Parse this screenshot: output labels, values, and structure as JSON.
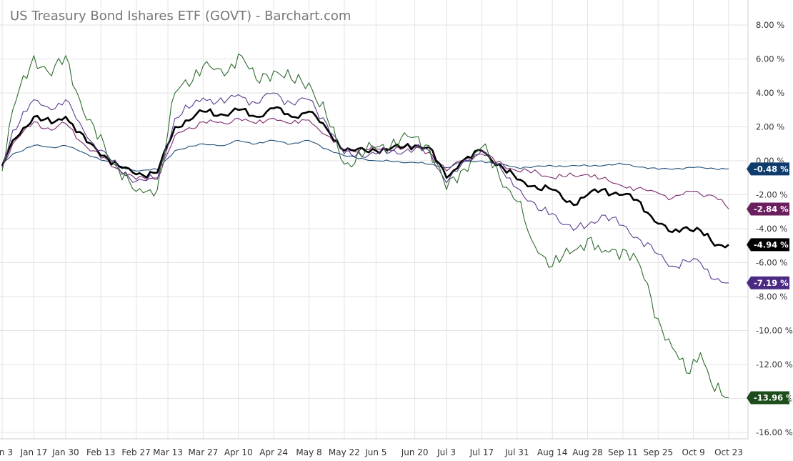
{
  "chart_data": {
    "type": "line",
    "title": "US Treasury Bond Ishares ETF (GOVT) - Barchart.com",
    "xlabel": "",
    "ylabel": "",
    "ylim": [
      -17,
      9
    ],
    "y_tick_values": [
      8,
      6,
      4,
      2,
      0,
      -2,
      -4,
      -6,
      -8,
      -10,
      -12,
      -14,
      -16
    ],
    "y_tick_labels": [
      "8.00 %",
      "6.00 %",
      "4.00 %",
      "2.00 %",
      "0.00 %",
      "-2.00 %",
      "-4.00 %",
      "-6.00 %",
      "-8.00 %",
      "-10.00 %",
      "-12.00 %",
      "-14.00 %",
      "-16.00 %"
    ],
    "x_tick_labels": [
      "Jan 3",
      "Jan 17",
      "Jan 30",
      "Feb 13",
      "Feb 27",
      "Mar 13",
      "Mar 27",
      "Apr 10",
      "Apr 24",
      "May 8",
      "May 22",
      "Jun 5",
      "Jun 20",
      "Jul 3",
      "Jul 17",
      "Jul 31",
      "Aug 14",
      "Aug 28",
      "Sep 11",
      "Sep 25",
      "Oct 9",
      "Oct 23"
    ],
    "x_tick_index": [
      0,
      9,
      18,
      28,
      38,
      47,
      57,
      67,
      77,
      87,
      97,
      106,
      117,
      126,
      136,
      146,
      156,
      166,
      176,
      186,
      196,
      206
    ],
    "grid": true,
    "legend": "none",
    "series": [
      {
        "color": "#1f4e79",
        "width": 1.1,
        "end_label": "-0.48 %",
        "badge_color": "#0f3c6e",
        "keypoints": [
          [
            0,
            -0.2
          ],
          [
            3,
            0.4
          ],
          [
            9,
            0.9
          ],
          [
            14,
            0.8
          ],
          [
            18,
            0.9
          ],
          [
            24,
            0.4
          ],
          [
            33,
            -0.3
          ],
          [
            38,
            -0.6
          ],
          [
            44,
            -0.5
          ],
          [
            49,
            0.6
          ],
          [
            57,
            1.0
          ],
          [
            63,
            0.9
          ],
          [
            67,
            1.2
          ],
          [
            72,
            1.0
          ],
          [
            77,
            1.2
          ],
          [
            82,
            1.0
          ],
          [
            87,
            1.2
          ],
          [
            92,
            0.7
          ],
          [
            97,
            0.3
          ],
          [
            106,
            0.0
          ],
          [
            117,
            -0.1
          ],
          [
            121,
            -0.2
          ],
          [
            126,
            -0.4
          ],
          [
            130,
            -0.1
          ],
          [
            136,
            0.0
          ],
          [
            146,
            -0.4
          ],
          [
            156,
            -0.3
          ],
          [
            166,
            -0.3
          ],
          [
            176,
            -0.2
          ],
          [
            186,
            -0.5
          ],
          [
            196,
            -0.4
          ],
          [
            206,
            -0.48
          ]
        ]
      },
      {
        "color": "#7b2a6e",
        "width": 1.1,
        "end_label": "-2.84 %",
        "badge_color": "#6b1f5e",
        "keypoints": [
          [
            0,
            -0.3
          ],
          [
            3,
            1.0
          ],
          [
            9,
            2.3
          ],
          [
            14,
            1.8
          ],
          [
            18,
            2.2
          ],
          [
            24,
            0.8
          ],
          [
            33,
            -0.5
          ],
          [
            38,
            -1.1
          ],
          [
            44,
            -1.0
          ],
          [
            49,
            1.5
          ],
          [
            57,
            2.3
          ],
          [
            63,
            2.2
          ],
          [
            67,
            2.5
          ],
          [
            72,
            2.2
          ],
          [
            77,
            2.5
          ],
          [
            82,
            2.2
          ],
          [
            87,
            2.4
          ],
          [
            92,
            1.5
          ],
          [
            97,
            0.6
          ],
          [
            106,
            0.7
          ],
          [
            117,
            0.8
          ],
          [
            121,
            0.5
          ],
          [
            126,
            -0.6
          ],
          [
            130,
            0.0
          ],
          [
            136,
            0.4
          ],
          [
            146,
            -0.6
          ],
          [
            152,
            -0.7
          ],
          [
            156,
            -1.0
          ],
          [
            166,
            -0.8
          ],
          [
            176,
            -1.5
          ],
          [
            186,
            -1.9
          ],
          [
            190,
            -2.2
          ],
          [
            196,
            -1.8
          ],
          [
            202,
            -2.1
          ],
          [
            206,
            -2.84
          ]
        ]
      },
      {
        "color": "#000000",
        "width": 2.6,
        "end_label": "-4.94 %",
        "badge_color": "#000000",
        "keypoints": [
          [
            0,
            -0.3
          ],
          [
            3,
            1.2
          ],
          [
            9,
            2.6
          ],
          [
            14,
            2.2
          ],
          [
            18,
            2.6
          ],
          [
            24,
            1.1
          ],
          [
            33,
            -0.3
          ],
          [
            38,
            -0.8
          ],
          [
            44,
            -0.7
          ],
          [
            49,
            2.0
          ],
          [
            57,
            2.9
          ],
          [
            63,
            2.7
          ],
          [
            67,
            3.0
          ],
          [
            72,
            2.6
          ],
          [
            77,
            3.1
          ],
          [
            82,
            2.6
          ],
          [
            87,
            2.9
          ],
          [
            92,
            1.9
          ],
          [
            97,
            0.6
          ],
          [
            106,
            0.6
          ],
          [
            117,
            0.9
          ],
          [
            121,
            0.8
          ],
          [
            126,
            -1.0
          ],
          [
            130,
            -0.1
          ],
          [
            136,
            0.6
          ],
          [
            146,
            -1.1
          ],
          [
            150,
            -1.5
          ],
          [
            156,
            -1.7
          ],
          [
            162,
            -2.6
          ],
          [
            166,
            -2.0
          ],
          [
            170,
            -1.7
          ],
          [
            176,
            -2.0
          ],
          [
            180,
            -2.3
          ],
          [
            186,
            -3.7
          ],
          [
            190,
            -4.2
          ],
          [
            194,
            -3.9
          ],
          [
            198,
            -4.1
          ],
          [
            202,
            -5.0
          ],
          [
            206,
            -4.94
          ]
        ]
      },
      {
        "color": "#5e3b8f",
        "width": 1.1,
        "end_label": "-7.19 %",
        "badge_color": "#4b2a85",
        "keypoints": [
          [
            0,
            -0.4
          ],
          [
            3,
            1.8
          ],
          [
            9,
            3.6
          ],
          [
            14,
            3.0
          ],
          [
            18,
            3.6
          ],
          [
            24,
            1.4
          ],
          [
            33,
            -0.4
          ],
          [
            38,
            -1.2
          ],
          [
            44,
            -1.1
          ],
          [
            49,
            2.5
          ],
          [
            57,
            3.7
          ],
          [
            63,
            3.4
          ],
          [
            67,
            3.9
          ],
          [
            72,
            3.4
          ],
          [
            77,
            4.0
          ],
          [
            82,
            3.4
          ],
          [
            87,
            3.6
          ],
          [
            92,
            2.2
          ],
          [
            97,
            0.4
          ],
          [
            106,
            0.4
          ],
          [
            117,
            0.7
          ],
          [
            121,
            0.6
          ],
          [
            126,
            -1.3
          ],
          [
            130,
            -0.3
          ],
          [
            136,
            0.6
          ],
          [
            146,
            -1.6
          ],
          [
            152,
            -2.9
          ],
          [
            156,
            -3.1
          ],
          [
            162,
            -4.1
          ],
          [
            166,
            -3.8
          ],
          [
            170,
            -3.2
          ],
          [
            176,
            -3.8
          ],
          [
            180,
            -4.5
          ],
          [
            186,
            -5.5
          ],
          [
            190,
            -6.2
          ],
          [
            194,
            -5.9
          ],
          [
            198,
            -6.0
          ],
          [
            202,
            -7.0
          ],
          [
            206,
            -7.19
          ]
        ]
      },
      {
        "color": "#2e6b2e",
        "width": 1.1,
        "end_label": "-13.96 %",
        "badge_color": "#1d4d1d",
        "keypoints": [
          [
            0,
            -0.6
          ],
          [
            3,
            3.0
          ],
          [
            9,
            6.2
          ],
          [
            14,
            5.0
          ],
          [
            18,
            6.2
          ],
          [
            24,
            2.4
          ],
          [
            33,
            -0.5
          ],
          [
            38,
            -1.8
          ],
          [
            44,
            -1.7
          ],
          [
            49,
            4.0
          ],
          [
            57,
            5.6
          ],
          [
            63,
            5.0
          ],
          [
            67,
            6.3
          ],
          [
            72,
            4.8
          ],
          [
            77,
            5.3
          ],
          [
            82,
            4.8
          ],
          [
            87,
            4.6
          ],
          [
            92,
            2.6
          ],
          [
            97,
            -0.2
          ],
          [
            106,
            0.8
          ],
          [
            117,
            1.4
          ],
          [
            121,
            0.9
          ],
          [
            126,
            -1.7
          ],
          [
            130,
            -0.6
          ],
          [
            136,
            0.8
          ],
          [
            146,
            -2.4
          ],
          [
            150,
            -4.6
          ],
          [
            156,
            -6.2
          ],
          [
            162,
            -5.3
          ],
          [
            166,
            -4.6
          ],
          [
            170,
            -5.4
          ],
          [
            176,
            -5.2
          ],
          [
            180,
            -5.8
          ],
          [
            186,
            -9.3
          ],
          [
            190,
            -11.0
          ],
          [
            194,
            -12.5
          ],
          [
            198,
            -11.3
          ],
          [
            202,
            -13.6
          ],
          [
            206,
            -13.96
          ]
        ]
      }
    ]
  }
}
